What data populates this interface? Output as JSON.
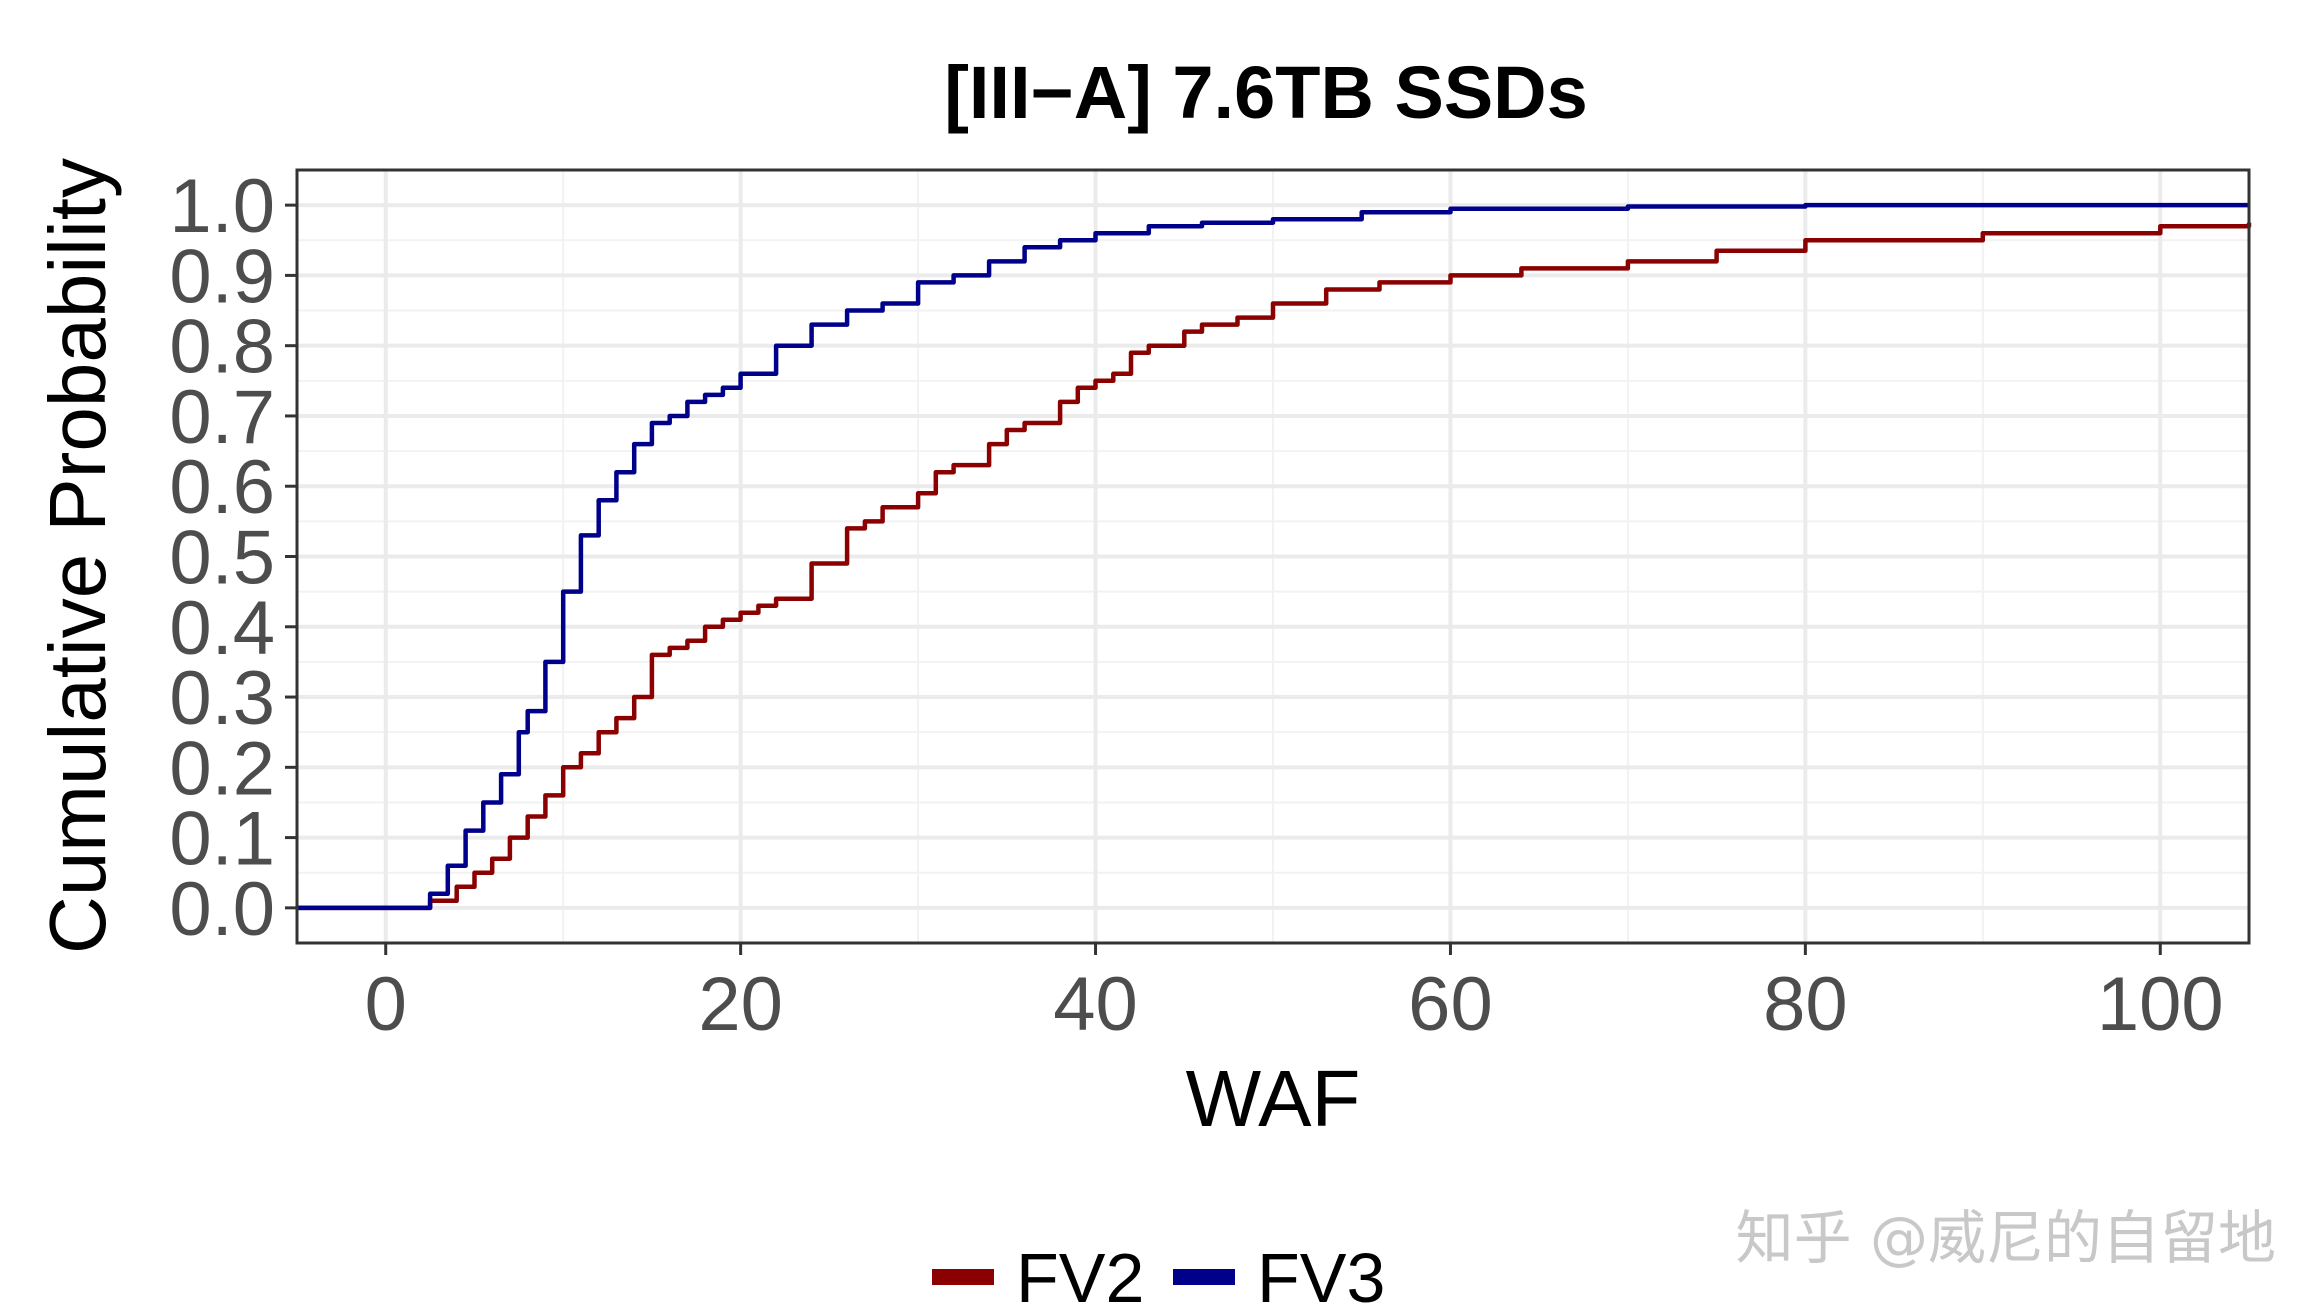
{
  "chart_data": {
    "type": "line",
    "title": "[III−A] 7.6TB SSDs",
    "xlabel": "WAF",
    "ylabel": "Cumulative Probability",
    "xlim": [
      -5,
      105
    ],
    "ylim": [
      -0.05,
      1.05
    ],
    "x_ticks": [
      0,
      20,
      40,
      60,
      80,
      100
    ],
    "x_tick_labels": [
      "0",
      "20",
      "40",
      "60",
      "80",
      "100"
    ],
    "y_ticks": [
      0,
      0.1,
      0.2,
      0.3,
      0.4,
      0.5,
      0.6,
      0.7,
      0.8,
      0.9,
      1.0
    ],
    "y_tick_labels": [
      "0.0",
      "0.1",
      "0.2",
      "0.3",
      "0.4",
      "0.5",
      "0.6",
      "0.7",
      "0.8",
      "0.9",
      "1.0"
    ],
    "grid": true,
    "legend_position": "bottom",
    "series": [
      {
        "name": "FV2",
        "color": "#8b0000",
        "points": [
          [
            -5,
            0
          ],
          [
            1.5,
            0
          ],
          [
            2.5,
            0.01
          ],
          [
            4,
            0.03
          ],
          [
            5,
            0.05
          ],
          [
            6,
            0.07
          ],
          [
            7,
            0.1
          ],
          [
            8,
            0.13
          ],
          [
            9,
            0.16
          ],
          [
            10,
            0.2
          ],
          [
            11,
            0.22
          ],
          [
            12,
            0.25
          ],
          [
            13,
            0.27
          ],
          [
            14,
            0.3
          ],
          [
            15,
            0.36
          ],
          [
            16,
            0.37
          ],
          [
            17,
            0.38
          ],
          [
            18,
            0.4
          ],
          [
            19,
            0.41
          ],
          [
            20,
            0.42
          ],
          [
            21,
            0.43
          ],
          [
            22,
            0.44
          ],
          [
            24,
            0.49
          ],
          [
            26,
            0.54
          ],
          [
            27,
            0.55
          ],
          [
            28,
            0.57
          ],
          [
            30,
            0.59
          ],
          [
            31,
            0.62
          ],
          [
            32,
            0.63
          ],
          [
            34,
            0.66
          ],
          [
            35,
            0.68
          ],
          [
            36,
            0.69
          ],
          [
            38,
            0.72
          ],
          [
            39,
            0.74
          ],
          [
            40,
            0.75
          ],
          [
            41,
            0.76
          ],
          [
            42,
            0.79
          ],
          [
            43,
            0.8
          ],
          [
            45,
            0.82
          ],
          [
            46,
            0.83
          ],
          [
            48,
            0.84
          ],
          [
            50,
            0.86
          ],
          [
            53,
            0.88
          ],
          [
            56,
            0.89
          ],
          [
            60,
            0.9
          ],
          [
            64,
            0.91
          ],
          [
            70,
            0.92
          ],
          [
            75,
            0.935
          ],
          [
            80,
            0.95
          ],
          [
            90,
            0.96
          ],
          [
            100,
            0.97
          ],
          [
            105,
            0.975
          ]
        ]
      },
      {
        "name": "FV3",
        "color": "#00008b",
        "points": [
          [
            -5,
            0
          ],
          [
            1.5,
            0
          ],
          [
            2.5,
            0.02
          ],
          [
            3.5,
            0.06
          ],
          [
            4.5,
            0.11
          ],
          [
            5.5,
            0.15
          ],
          [
            6.5,
            0.19
          ],
          [
            7.5,
            0.25
          ],
          [
            8,
            0.28
          ],
          [
            9,
            0.35
          ],
          [
            10,
            0.45
          ],
          [
            11,
            0.53
          ],
          [
            12,
            0.58
          ],
          [
            13,
            0.62
          ],
          [
            14,
            0.66
          ],
          [
            15,
            0.69
          ],
          [
            16,
            0.7
          ],
          [
            17,
            0.72
          ],
          [
            18,
            0.73
          ],
          [
            19,
            0.74
          ],
          [
            20,
            0.76
          ],
          [
            22,
            0.8
          ],
          [
            24,
            0.83
          ],
          [
            26,
            0.85
          ],
          [
            28,
            0.86
          ],
          [
            30,
            0.89
          ],
          [
            32,
            0.9
          ],
          [
            34,
            0.92
          ],
          [
            36,
            0.94
          ],
          [
            38,
            0.95
          ],
          [
            40,
            0.96
          ],
          [
            43,
            0.97
          ],
          [
            46,
            0.975
          ],
          [
            50,
            0.98
          ],
          [
            55,
            0.99
          ],
          [
            60,
            0.995
          ],
          [
            70,
            0.998
          ],
          [
            80,
            1.0
          ],
          [
            105,
            1.0
          ]
        ]
      }
    ]
  },
  "watermark": "知乎 @威尼的自留地"
}
